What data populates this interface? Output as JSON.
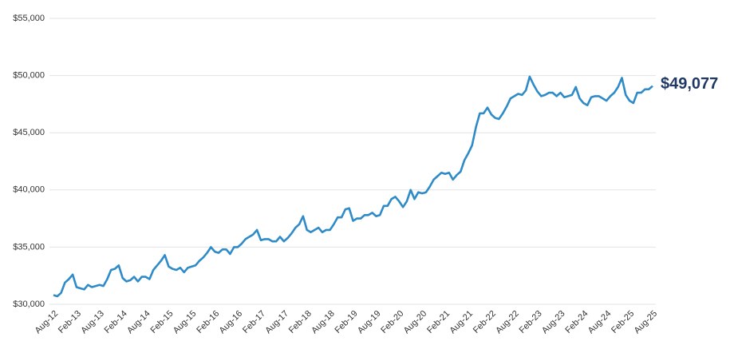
{
  "chart_data": {
    "type": "line",
    "categories": [
      "Aug-12",
      null,
      null,
      null,
      null,
      null,
      "Feb-13",
      null,
      null,
      null,
      null,
      null,
      "Aug-13",
      null,
      null,
      null,
      null,
      null,
      "Feb-14",
      null,
      null,
      null,
      null,
      null,
      "Aug-14",
      null,
      null,
      null,
      null,
      null,
      "Feb-15",
      null,
      null,
      null,
      null,
      null,
      "Aug-15",
      null,
      null,
      null,
      null,
      null,
      "Feb-16",
      null,
      null,
      null,
      null,
      null,
      "Aug-16",
      null,
      null,
      null,
      null,
      null,
      "Feb-17",
      null,
      null,
      null,
      null,
      null,
      "Aug-17",
      null,
      null,
      null,
      null,
      null,
      "Feb-18",
      null,
      null,
      null,
      null,
      null,
      "Aug-18",
      null,
      null,
      null,
      null,
      null,
      "Feb-19",
      null,
      null,
      null,
      null,
      null,
      "Aug-19",
      null,
      null,
      null,
      null,
      null,
      "Feb-20",
      null,
      null,
      null,
      null,
      null,
      "Aug-20",
      null,
      null,
      null,
      null,
      null,
      "Feb-21",
      null,
      null,
      null,
      null,
      null,
      "Aug-21",
      null,
      null,
      null,
      null,
      null,
      "Feb-22",
      null,
      null,
      null,
      null,
      null,
      "Aug-22",
      null,
      null,
      null,
      null,
      null,
      "Feb-23",
      null,
      null,
      null,
      null,
      null,
      "Aug-23",
      null,
      null,
      null,
      null,
      null,
      "Feb-24",
      null,
      null,
      null,
      null,
      null,
      "Aug-24",
      null,
      null,
      null,
      null,
      null,
      "Feb-25",
      null,
      null,
      null,
      null,
      null,
      "Aug-25"
    ],
    "values": [
      30800,
      30700,
      31000,
      31900,
      32200,
      32600,
      31500,
      31400,
      31300,
      31700,
      31500,
      31600,
      31700,
      31600,
      32200,
      33000,
      33100,
      33400,
      32300,
      32000,
      32100,
      32400,
      32000,
      32400,
      32400,
      32200,
      33000,
      33400,
      33800,
      34300,
      33300,
      33100,
      33000,
      33200,
      32800,
      33200,
      33300,
      33400,
      33800,
      34100,
      34500,
      35000,
      34600,
      34500,
      34800,
      34800,
      34400,
      35000,
      35000,
      35300,
      35700,
      35900,
      36100,
      36500,
      35600,
      35700,
      35700,
      35500,
      35500,
      35900,
      35500,
      35800,
      36200,
      36700,
      37000,
      37700,
      36500,
      36300,
      36500,
      36700,
      36300,
      36500,
      36500,
      37000,
      37600,
      37600,
      38300,
      38400,
      37300,
      37500,
      37500,
      37800,
      37800,
      38000,
      37700,
      37800,
      38600,
      38600,
      39200,
      39400,
      39000,
      38500,
      39000,
      40000,
      39200,
      39800,
      39700,
      39800,
      40300,
      40900,
      41200,
      41500,
      41400,
      41500,
      40900,
      41300,
      41600,
      42600,
      43200,
      43900,
      45500,
      46700,
      46700,
      47200,
      46600,
      46300,
      46200,
      46700,
      47300,
      48000,
      48200,
      48400,
      48300,
      48700,
      49900,
      49200,
      48600,
      48200,
      48300,
      48500,
      48500,
      48200,
      48500,
      48100,
      48200,
      48300,
      49000,
      48000,
      47600,
      47400,
      48100,
      48200,
      48200,
      48000,
      47800,
      48200,
      48500,
      49000,
      49800,
      48300,
      47800,
      47600,
      48500,
      48500,
      48800,
      48800,
      49077
    ],
    "value_labels": [
      null,
      null,
      null,
      null,
      null,
      null,
      null,
      null,
      null,
      null,
      null,
      null,
      null,
      null,
      null,
      null,
      null,
      null,
      null,
      null,
      null,
      null,
      null,
      null,
      null,
      null,
      null,
      null,
      null,
      null,
      null,
      null,
      null,
      null,
      null,
      null,
      null,
      null,
      null,
      null,
      null,
      null,
      null,
      null,
      null,
      null,
      null,
      null,
      null,
      null,
      null,
      null,
      null,
      null,
      null,
      null,
      null,
      null,
      null,
      null,
      null,
      null,
      null,
      null,
      null,
      null,
      null,
      null,
      null,
      null,
      null,
      null,
      null,
      null,
      null,
      null,
      null,
      null,
      null,
      null,
      null,
      null,
      null,
      null,
      null,
      null,
      null,
      null,
      null,
      null,
      null,
      null,
      null,
      null,
      null,
      null,
      null,
      null,
      null,
      null,
      null,
      null,
      null,
      null,
      null,
      null,
      null,
      null,
      null,
      null,
      null,
      null,
      null,
      null,
      null,
      null,
      null,
      null,
      null,
      null,
      null,
      null,
      null,
      null,
      null,
      null,
      null,
      null,
      null,
      null,
      null,
      null,
      null,
      null,
      null,
      null,
      null,
      null,
      null,
      null,
      null,
      null,
      null,
      null,
      null,
      null,
      null,
      null,
      null,
      null,
      null,
      null,
      null,
      null,
      null,
      null,
      "$49,077"
    ],
    "color": "#2e8bc8",
    "ylim": [
      30000,
      55000
    ],
    "yticks": [
      {
        "value": 30000,
        "label": "$30,000"
      },
      {
        "value": 35000,
        "label": "$35,000"
      },
      {
        "value": 40000,
        "label": "$40,000"
      },
      {
        "value": 45000,
        "label": "$45,000"
      },
      {
        "value": 50000,
        "label": "$50,000"
      },
      {
        "value": 55000,
        "label": "$55,000"
      }
    ],
    "grid": true
  }
}
